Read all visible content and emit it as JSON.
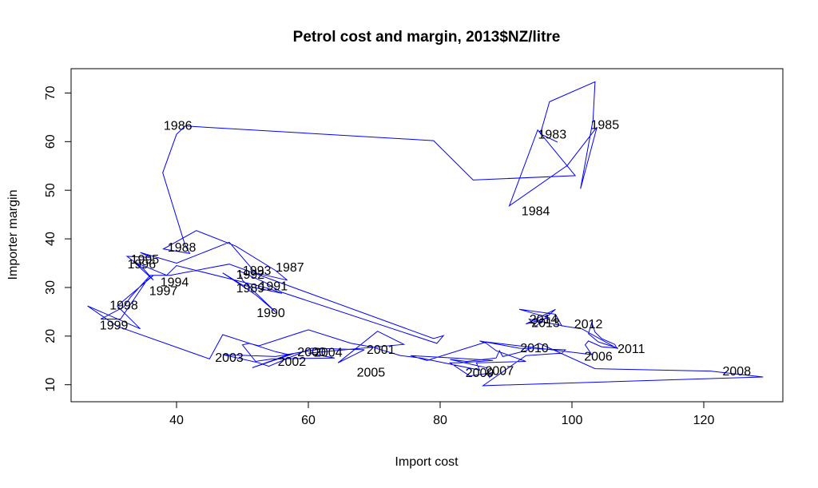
{
  "chart_data": {
    "type": "line",
    "title": "Petrol cost and margin, 2013$NZ/litre",
    "xlabel": "Import cost",
    "ylabel": "Importer margin",
    "xlim": [
      24,
      132
    ],
    "ylim": [
      6.5,
      75
    ],
    "x_ticks": [
      40,
      60,
      80,
      100,
      120
    ],
    "y_ticks": [
      10,
      20,
      30,
      40,
      50,
      60,
      70
    ],
    "grid": false,
    "line_color": "#0000ff",
    "path": [
      {
        "x": 97.8,
        "y": 59.9
      },
      {
        "x": 95.2,
        "y": 61.6
      },
      {
        "x": 96.6,
        "y": 68.2
      },
      {
        "x": 103.5,
        "y": 72.3
      },
      {
        "x": 103.2,
        "y": 64.5
      },
      {
        "x": 101.3,
        "y": 50.3
      },
      {
        "x": 103.8,
        "y": 63.0
      },
      {
        "x": 99.3,
        "y": 55.1
      },
      {
        "x": 90.5,
        "y": 46.8
      },
      {
        "x": 94.8,
        "y": 62.4
      },
      {
        "x": 100.5,
        "y": 53.0
      },
      {
        "x": 85.0,
        "y": 52.1
      },
      {
        "x": 79.0,
        "y": 60.2
      },
      {
        "x": 41.3,
        "y": 63.2
      },
      {
        "x": 40.0,
        "y": 61.5
      },
      {
        "x": 37.9,
        "y": 53.6
      },
      {
        "x": 41.3,
        "y": 38.7
      },
      {
        "x": 42.0,
        "y": 37.0
      },
      {
        "x": 38.0,
        "y": 37.9
      },
      {
        "x": 43.0,
        "y": 41.7
      },
      {
        "x": 49.0,
        "y": 38.5
      },
      {
        "x": 55.0,
        "y": 33.5
      },
      {
        "x": 56.8,
        "y": 31.5
      },
      {
        "x": 52.0,
        "y": 33.0
      },
      {
        "x": 48.0,
        "y": 39.3
      },
      {
        "x": 40.0,
        "y": 35.0
      },
      {
        "x": 34.5,
        "y": 37.2
      },
      {
        "x": 36.0,
        "y": 36.2
      },
      {
        "x": 32.5,
        "y": 36.4
      },
      {
        "x": 35.0,
        "y": 33.8
      },
      {
        "x": 36.5,
        "y": 31.5
      },
      {
        "x": 33.5,
        "y": 35.3
      },
      {
        "x": 38.5,
        "y": 32.5
      },
      {
        "x": 40.0,
        "y": 34.5
      },
      {
        "x": 54.0,
        "y": 29.8
      },
      {
        "x": 56.0,
        "y": 28.8
      },
      {
        "x": 50.0,
        "y": 30.5
      },
      {
        "x": 47.0,
        "y": 33.0
      },
      {
        "x": 52.0,
        "y": 28.5
      },
      {
        "x": 55.0,
        "y": 25.0
      },
      {
        "x": 50.0,
        "y": 31.5
      },
      {
        "x": 49.5,
        "y": 33.4
      },
      {
        "x": 53.5,
        "y": 31.0
      },
      {
        "x": 56.0,
        "y": 29.0
      },
      {
        "x": 79.5,
        "y": 18.5
      },
      {
        "x": 80.5,
        "y": 20.1
      },
      {
        "x": 79.0,
        "y": 19.5
      },
      {
        "x": 48.0,
        "y": 34.8
      },
      {
        "x": 39.0,
        "y": 32.5
      },
      {
        "x": 36.0,
        "y": 32.5
      },
      {
        "x": 33.0,
        "y": 28.0
      },
      {
        "x": 32.0,
        "y": 26.0
      },
      {
        "x": 28.5,
        "y": 23.5
      },
      {
        "x": 31.5,
        "y": 23.5
      },
      {
        "x": 35.5,
        "y": 31.5
      },
      {
        "x": 36.5,
        "y": 32.5
      },
      {
        "x": 31.0,
        "y": 26.2
      },
      {
        "x": 34.5,
        "y": 21.5
      },
      {
        "x": 26.5,
        "y": 26.2
      },
      {
        "x": 31.0,
        "y": 22.0
      },
      {
        "x": 45.0,
        "y": 15.3
      },
      {
        "x": 47.0,
        "y": 20.3
      },
      {
        "x": 55.0,
        "y": 16.8
      },
      {
        "x": 57.0,
        "y": 16.2
      },
      {
        "x": 51.5,
        "y": 13.5
      },
      {
        "x": 58.0,
        "y": 16.5
      },
      {
        "x": 62.5,
        "y": 17.5
      },
      {
        "x": 55.0,
        "y": 15.8
      },
      {
        "x": 47.0,
        "y": 16.2
      },
      {
        "x": 52.5,
        "y": 14.5
      },
      {
        "x": 54.0,
        "y": 13.8
      },
      {
        "x": 60.5,
        "y": 17.5
      },
      {
        "x": 68.5,
        "y": 17.2
      },
      {
        "x": 64.5,
        "y": 14.5
      },
      {
        "x": 70.5,
        "y": 21.0
      },
      {
        "x": 74.5,
        "y": 18.3
      },
      {
        "x": 60.0,
        "y": 16.5
      },
      {
        "x": 64.0,
        "y": 15.5
      },
      {
        "x": 54.5,
        "y": 15.3
      },
      {
        "x": 52.0,
        "y": 14.8
      },
      {
        "x": 50.0,
        "y": 18.2
      },
      {
        "x": 51.0,
        "y": 18.5
      },
      {
        "x": 52.5,
        "y": 18.0
      },
      {
        "x": 60.0,
        "y": 21.3
      },
      {
        "x": 66.5,
        "y": 18.5
      },
      {
        "x": 69.5,
        "y": 17.8
      },
      {
        "x": 74.0,
        "y": 16.0
      },
      {
        "x": 77.0,
        "y": 15.5
      },
      {
        "x": 86.0,
        "y": 13.0
      },
      {
        "x": 85.5,
        "y": 14.5
      },
      {
        "x": 93.0,
        "y": 14.8
      },
      {
        "x": 88.5,
        "y": 17.0
      },
      {
        "x": 87.0,
        "y": 18.5
      },
      {
        "x": 86.0,
        "y": 19.0
      },
      {
        "x": 92.0,
        "y": 17.5
      },
      {
        "x": 99.0,
        "y": 17.2
      },
      {
        "x": 98.5,
        "y": 16.5
      },
      {
        "x": 93.0,
        "y": 16.0
      },
      {
        "x": 86.5,
        "y": 9.8
      },
      {
        "x": 129.0,
        "y": 11.6
      },
      {
        "x": 121.0,
        "y": 12.8
      },
      {
        "x": 103.5,
        "y": 13.3
      },
      {
        "x": 95.0,
        "y": 18.5
      },
      {
        "x": 93.0,
        "y": 17.0
      },
      {
        "x": 89.5,
        "y": 15.8
      },
      {
        "x": 89.0,
        "y": 17.0
      },
      {
        "x": 88.5,
        "y": 15.5
      },
      {
        "x": 84.0,
        "y": 14.8
      },
      {
        "x": 81.5,
        "y": 15.2
      },
      {
        "x": 87.0,
        "y": 13.5
      },
      {
        "x": 87.5,
        "y": 11.5
      },
      {
        "x": 88.0,
        "y": 12.5
      },
      {
        "x": 84.5,
        "y": 11.8
      },
      {
        "x": 81.5,
        "y": 14.5
      },
      {
        "x": 83.0,
        "y": 14.5
      },
      {
        "x": 88.0,
        "y": 15.0
      },
      {
        "x": 82.0,
        "y": 15.5
      },
      {
        "x": 75.5,
        "y": 16.0
      },
      {
        "x": 78.0,
        "y": 15.0
      },
      {
        "x": 87.0,
        "y": 18.8
      },
      {
        "x": 95.0,
        "y": 17.5
      },
      {
        "x": 103.0,
        "y": 16.2
      },
      {
        "x": 102.0,
        "y": 18.2
      },
      {
        "x": 102.5,
        "y": 19.0
      },
      {
        "x": 104.5,
        "y": 17.8
      },
      {
        "x": 107.0,
        "y": 17.5
      },
      {
        "x": 104.0,
        "y": 18.8
      },
      {
        "x": 102.5,
        "y": 20.5
      },
      {
        "x": 103.0,
        "y": 22.8
      },
      {
        "x": 103.5,
        "y": 20.8
      },
      {
        "x": 104.5,
        "y": 19.5
      },
      {
        "x": 106.5,
        "y": 18.3
      },
      {
        "x": 106.8,
        "y": 17.5
      },
      {
        "x": 101.5,
        "y": 21.5
      },
      {
        "x": 99.0,
        "y": 22.0
      },
      {
        "x": 93.5,
        "y": 23.5
      },
      {
        "x": 94.5,
        "y": 22.0
      },
      {
        "x": 97.5,
        "y": 25.5
      },
      {
        "x": 93.0,
        "y": 22.5
      },
      {
        "x": 96.5,
        "y": 23.8
      },
      {
        "x": 92.0,
        "y": 25.5
      },
      {
        "x": 97.5,
        "y": 24.5
      },
      {
        "x": 98.5,
        "y": 22.0
      }
    ],
    "year_labels": [
      {
        "text": "1983",
        "x": 97.0,
        "y": 61.5
      },
      {
        "text": "1984",
        "x": 94.5,
        "y": 45.8
      },
      {
        "text": "1985",
        "x": 105.0,
        "y": 63.5
      },
      {
        "text": "1986",
        "x": 40.2,
        "y": 63.3
      },
      {
        "text": "1987",
        "x": 57.2,
        "y": 34.2
      },
      {
        "text": "1988",
        "x": 40.8,
        "y": 38.3
      },
      {
        "text": "1989",
        "x": 51.2,
        "y": 29.9
      },
      {
        "text": "1990",
        "x": 54.3,
        "y": 24.8
      },
      {
        "text": "1991",
        "x": 54.7,
        "y": 30.3
      },
      {
        "text": "1992",
        "x": 51.2,
        "y": 32.7
      },
      {
        "text": "1993",
        "x": 52.2,
        "y": 33.5
      },
      {
        "text": "1994",
        "x": 39.7,
        "y": 31.1
      },
      {
        "text": "1995",
        "x": 35.2,
        "y": 35.8
      },
      {
        "text": "1996",
        "x": 34.7,
        "y": 34.8
      },
      {
        "text": "1997",
        "x": 38.0,
        "y": 29.3
      },
      {
        "text": "1998",
        "x": 32.0,
        "y": 26.4
      },
      {
        "text": "1999",
        "x": 30.5,
        "y": 22.3
      },
      {
        "text": "2000",
        "x": 60.5,
        "y": 16.8
      },
      {
        "text": "2001",
        "x": 71.0,
        "y": 17.3
      },
      {
        "text": "2002",
        "x": 57.5,
        "y": 14.8
      },
      {
        "text": "2003",
        "x": 48.0,
        "y": 15.6
      },
      {
        "text": "2004",
        "x": 63.0,
        "y": 16.7
      },
      {
        "text": "2005",
        "x": 69.5,
        "y": 12.6
      },
      {
        "text": "2006",
        "x": 104.0,
        "y": 15.9
      },
      {
        "text": "2007",
        "x": 89.0,
        "y": 12.9
      },
      {
        "text": "2008",
        "x": 125.0,
        "y": 12.8
      },
      {
        "text": "2009",
        "x": 86.0,
        "y": 12.5
      },
      {
        "text": "2010",
        "x": 94.3,
        "y": 17.6
      },
      {
        "text": "2011",
        "x": 109.0,
        "y": 17.4
      },
      {
        "text": "2012",
        "x": 102.5,
        "y": 22.5
      },
      {
        "text": "2013",
        "x": 96.0,
        "y": 22.8
      },
      {
        "text": "2014",
        "x": 95.7,
        "y": 23.5
      }
    ]
  }
}
